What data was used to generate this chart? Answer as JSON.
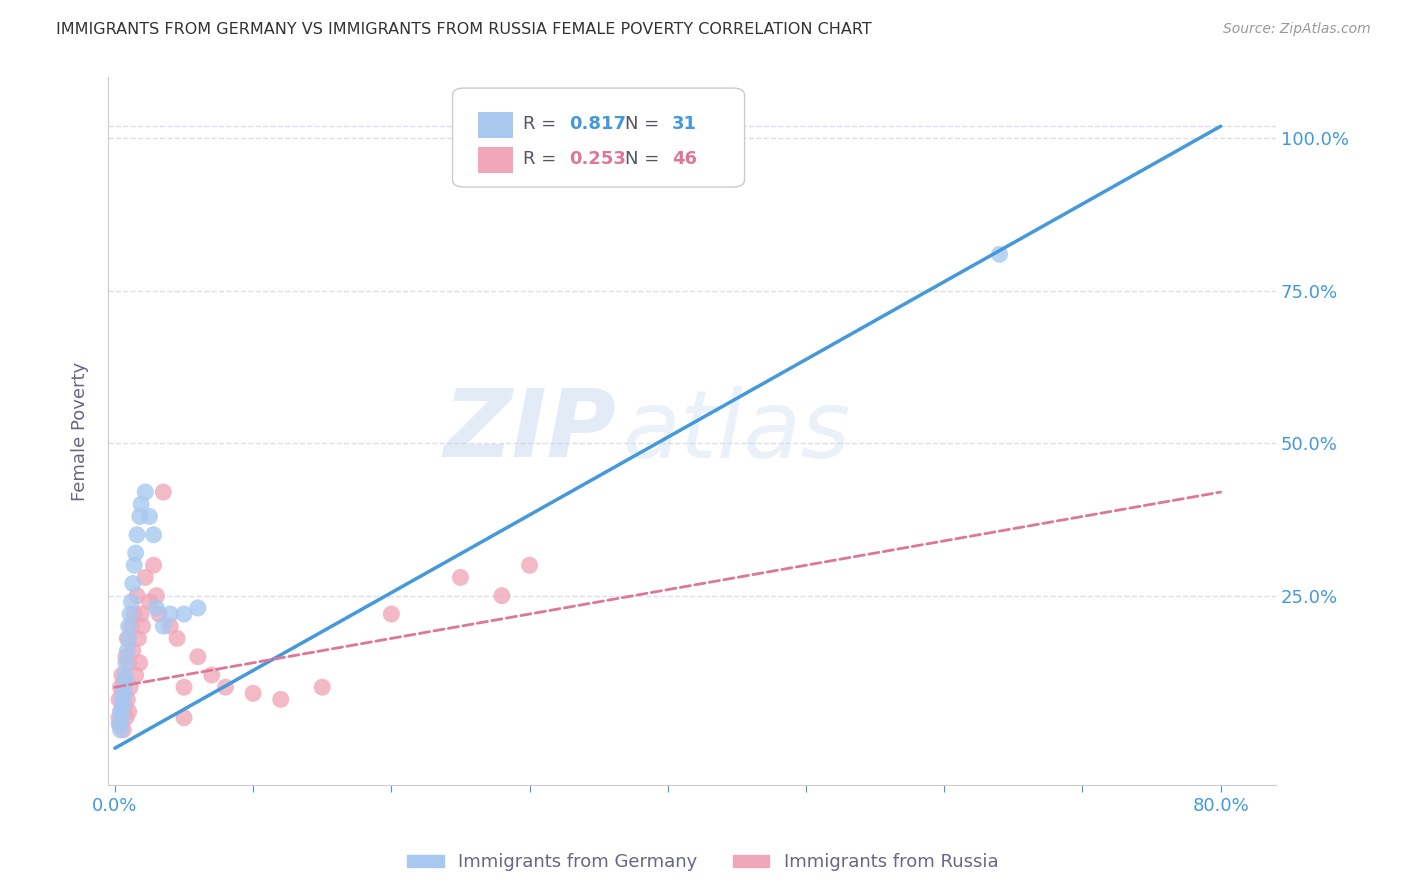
{
  "title": "IMMIGRANTS FROM GERMANY VS IMMIGRANTS FROM RUSSIA FEMALE POVERTY CORRELATION CHART",
  "source": "Source: ZipAtlas.com",
  "ylabel": "Female Poverty",
  "xlim_min": -0.005,
  "xlim_max": 0.84,
  "ylim_min": -0.06,
  "ylim_max": 1.1,
  "xticks": [
    0.0,
    0.1,
    0.2,
    0.3,
    0.4,
    0.5,
    0.6,
    0.7,
    0.8
  ],
  "xticklabels": [
    "0.0%",
    "",
    "",
    "",
    "",
    "",
    "",
    "",
    "80.0%"
  ],
  "ytick_positions": [
    0.0,
    0.25,
    0.5,
    0.75,
    1.0
  ],
  "ytick_labels_right": [
    "",
    "25.0%",
    "50.0%",
    "75.0%",
    "100.0%"
  ],
  "germany_color": "#a8c8f0",
  "russia_color": "#f0a8b8",
  "germany_line_color": "#4499dd",
  "russia_line_color": "#dd7799",
  "legend_R_germany": "0.817",
  "legend_N_germany": "31",
  "legend_R_russia": "0.253",
  "legend_N_russia": "46",
  "watermark_zip": "ZIP",
  "watermark_atlas": "atlas",
  "background_color": "#ffffff",
  "grid_color": "#ddddee",
  "title_color": "#333333",
  "axis_label_color": "#666688",
  "right_tick_color": "#4499dd",
  "xtick_color": "#4499dd",
  "germany_x": [
    0.003,
    0.004,
    0.004,
    0.005,
    0.005,
    0.006,
    0.006,
    0.007,
    0.007,
    0.008,
    0.008,
    0.009,
    0.01,
    0.01,
    0.011,
    0.012,
    0.013,
    0.014,
    0.015,
    0.016,
    0.018,
    0.019,
    0.022,
    0.025,
    0.028,
    0.03,
    0.035,
    0.04,
    0.05,
    0.06,
    0.64
  ],
  "germany_y": [
    0.04,
    0.06,
    0.03,
    0.05,
    0.08,
    0.07,
    0.1,
    0.09,
    0.12,
    0.11,
    0.14,
    0.16,
    0.18,
    0.2,
    0.22,
    0.24,
    0.27,
    0.3,
    0.32,
    0.35,
    0.38,
    0.4,
    0.42,
    0.38,
    0.35,
    0.23,
    0.2,
    0.22,
    0.22,
    0.23,
    0.81
  ],
  "russia_x": [
    0.003,
    0.003,
    0.004,
    0.004,
    0.005,
    0.005,
    0.006,
    0.006,
    0.007,
    0.007,
    0.008,
    0.008,
    0.009,
    0.009,
    0.01,
    0.01,
    0.011,
    0.012,
    0.013,
    0.014,
    0.015,
    0.016,
    0.017,
    0.018,
    0.019,
    0.02,
    0.022,
    0.025,
    0.028,
    0.03,
    0.032,
    0.035,
    0.04,
    0.045,
    0.05,
    0.06,
    0.07,
    0.08,
    0.1,
    0.12,
    0.15,
    0.2,
    0.25,
    0.05,
    0.28,
    0.3
  ],
  "russia_y": [
    0.05,
    0.08,
    0.04,
    0.1,
    0.06,
    0.12,
    0.03,
    0.09,
    0.07,
    0.11,
    0.05,
    0.15,
    0.08,
    0.18,
    0.06,
    0.14,
    0.1,
    0.2,
    0.16,
    0.22,
    0.12,
    0.25,
    0.18,
    0.14,
    0.22,
    0.2,
    0.28,
    0.24,
    0.3,
    0.25,
    0.22,
    0.42,
    0.2,
    0.18,
    0.05,
    0.15,
    0.12,
    0.1,
    0.09,
    0.08,
    0.1,
    0.22,
    0.28,
    0.1,
    0.25,
    0.3
  ],
  "germany_line_x": [
    0.0,
    0.8
  ],
  "germany_line_y": [
    0.0,
    1.02
  ],
  "russia_line_x": [
    0.0,
    0.8
  ],
  "russia_line_y": [
    0.1,
    0.42
  ]
}
